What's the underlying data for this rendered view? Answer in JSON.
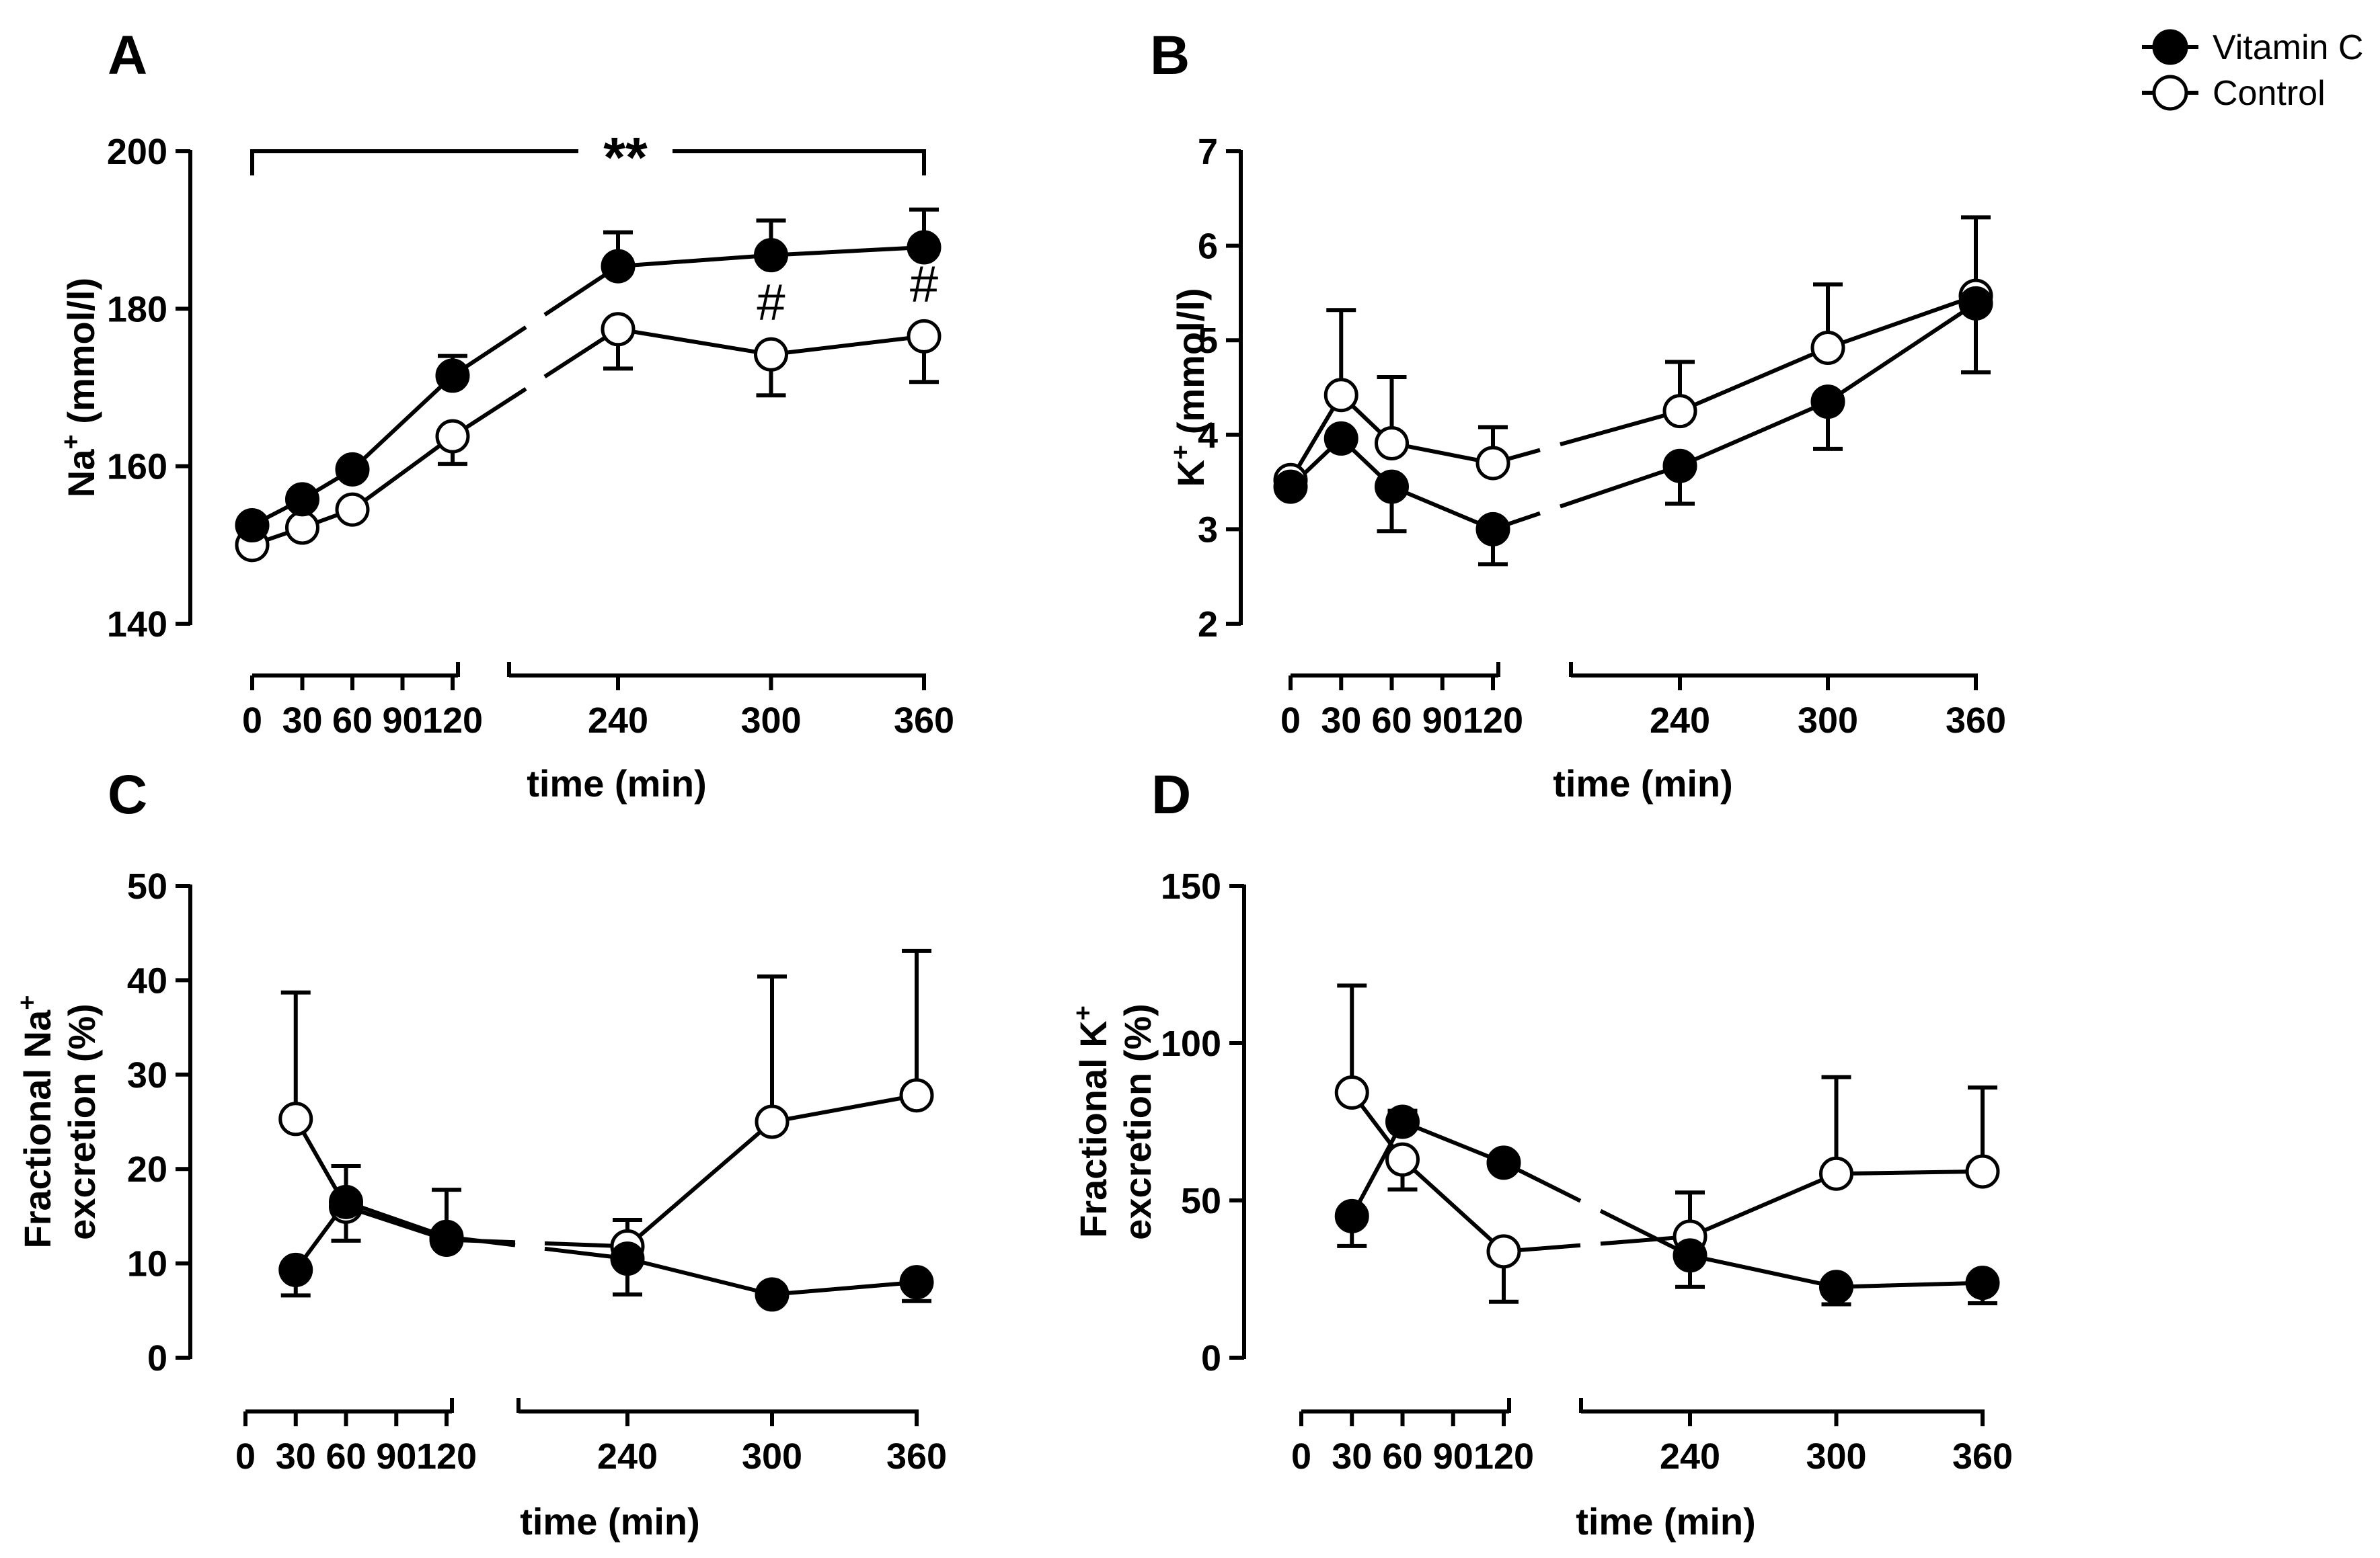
{
  "figure": {
    "legend": [
      {
        "name": "Vitamin C",
        "marker": "filled"
      },
      {
        "name": "Control",
        "marker": "open"
      }
    ]
  },
  "chart_data": [
    {
      "panel": "A",
      "type": "line",
      "xlabel": "time (min)",
      "ylabel": "Na+ (mmol/l)",
      "ylabel_base": "Na",
      "ylabel_sup": "+",
      "ylabel_rest": " (mmol/l)",
      "ylim": [
        140,
        200
      ],
      "yticks": [
        140,
        160,
        180,
        200
      ],
      "xticks_left": [
        0,
        30,
        60,
        90,
        120
      ],
      "xticks_right": [
        240,
        300,
        360
      ],
      "significance": {
        "label": "**",
        "x_from": 0,
        "x_to": 360
      },
      "markers": [
        {
          "label": "#",
          "x": 300
        },
        {
          "label": "#",
          "x": 360
        }
      ],
      "series": [
        {
          "name": "Vitamin C",
          "marker": "filled",
          "x": [
            0,
            30,
            60,
            120,
            240,
            300,
            360
          ],
          "values": [
            152.5,
            155.8,
            159.6,
            171.5,
            185.4,
            186.8,
            187.8
          ],
          "err": [
            0,
            0,
            0,
            2.5,
            4.3,
            4.4,
            4.8
          ]
        },
        {
          "name": "Control",
          "marker": "open",
          "x": [
            0,
            30,
            60,
            120,
            240,
            300,
            360
          ],
          "values": [
            150.0,
            152.2,
            154.5,
            163.8,
            177.4,
            174.2,
            176.5
          ],
          "err": [
            0,
            0,
            0,
            3.5,
            5.0,
            5.2,
            5.8
          ]
        }
      ]
    },
    {
      "panel": "B",
      "type": "line",
      "xlabel": "time (min)",
      "ylabel": "K+ (mmol/l)",
      "ylabel_base": "K",
      "ylabel_sup": "+",
      "ylabel_rest": " (mmol/l)",
      "ylim": [
        2,
        7
      ],
      "yticks": [
        2,
        3,
        4,
        5,
        6,
        7
      ],
      "xticks_left": [
        0,
        30,
        60,
        90,
        120
      ],
      "xticks_right": [
        240,
        300,
        360
      ],
      "series": [
        {
          "name": "Vitamin C",
          "marker": "filled",
          "x": [
            0,
            30,
            60,
            120,
            240,
            300,
            360
          ],
          "values": [
            3.45,
            3.96,
            3.45,
            3.0,
            3.67,
            4.35,
            5.39
          ],
          "err": [
            0,
            0,
            0.47,
            0.37,
            0.4,
            0.5,
            0.73
          ]
        },
        {
          "name": "Control",
          "marker": "open",
          "x": [
            0,
            30,
            60,
            120,
            240,
            300,
            360
          ],
          "values": [
            3.52,
            4.42,
            3.91,
            3.7,
            4.25,
            4.92,
            5.47
          ],
          "err": [
            0,
            0.9,
            0.7,
            0.38,
            0.52,
            0.67,
            0.83
          ]
        }
      ]
    },
    {
      "panel": "C",
      "type": "line",
      "xlabel": "time (min)",
      "ylabel": "Fractional Na+ excretion (%)",
      "ylabel_base": "Fractional Na",
      "ylabel_sup": "+",
      "ylabel_line2": "excretion (%)",
      "ylim": [
        0,
        50
      ],
      "yticks": [
        0,
        10,
        20,
        30,
        40,
        50
      ],
      "xticks_left": [
        0,
        30,
        60,
        90,
        120
      ],
      "xticks_right": [
        240,
        300,
        360
      ],
      "series": [
        {
          "name": "Vitamin C",
          "marker": "filled",
          "x": [
            30,
            60,
            120,
            240,
            300,
            360
          ],
          "values": [
            9.3,
            16.5,
            12.8,
            10.5,
            6.7,
            8.0
          ],
          "err": [
            2.7,
            3.8,
            5.0,
            3.8,
            0,
            2.0
          ]
        },
        {
          "name": "Control",
          "marker": "open",
          "x": [
            30,
            60,
            120,
            240,
            300,
            360
          ],
          "values": [
            25.3,
            16.0,
            12.5,
            11.8,
            25.0,
            27.8
          ],
          "err": [
            13.4,
            3.6,
            0,
            2.8,
            15.4,
            15.3
          ]
        }
      ]
    },
    {
      "panel": "D",
      "type": "line",
      "xlabel": "time (min)",
      "ylabel": "Fractional K+ excretion (%)",
      "ylabel_base": "Fractional K",
      "ylabel_sup": "+",
      "ylabel_line2": "excretion (%)",
      "ylim": [
        0,
        150
      ],
      "yticks": [
        0,
        50,
        100,
        150
      ],
      "xticks_left": [
        0,
        30,
        60,
        90,
        120
      ],
      "xticks_right": [
        240,
        300,
        360
      ],
      "series": [
        {
          "name": "Vitamin C",
          "marker": "filled",
          "x": [
            30,
            60,
            120,
            240,
            300,
            360
          ],
          "values": [
            45.0,
            75.0,
            62.0,
            32.5,
            22.5,
            23.8
          ],
          "err": [
            9.5,
            3.5,
            0,
            10.0,
            5.5,
            6.5
          ]
        },
        {
          "name": "Control",
          "marker": "open",
          "x": [
            30,
            60,
            120,
            240,
            300,
            360
          ],
          "values": [
            84.3,
            63.0,
            33.8,
            38.5,
            58.5,
            59.2
          ],
          "err": [
            34.0,
            9.5,
            16.0,
            14.0,
            30.7,
            26.7
          ]
        }
      ]
    }
  ]
}
